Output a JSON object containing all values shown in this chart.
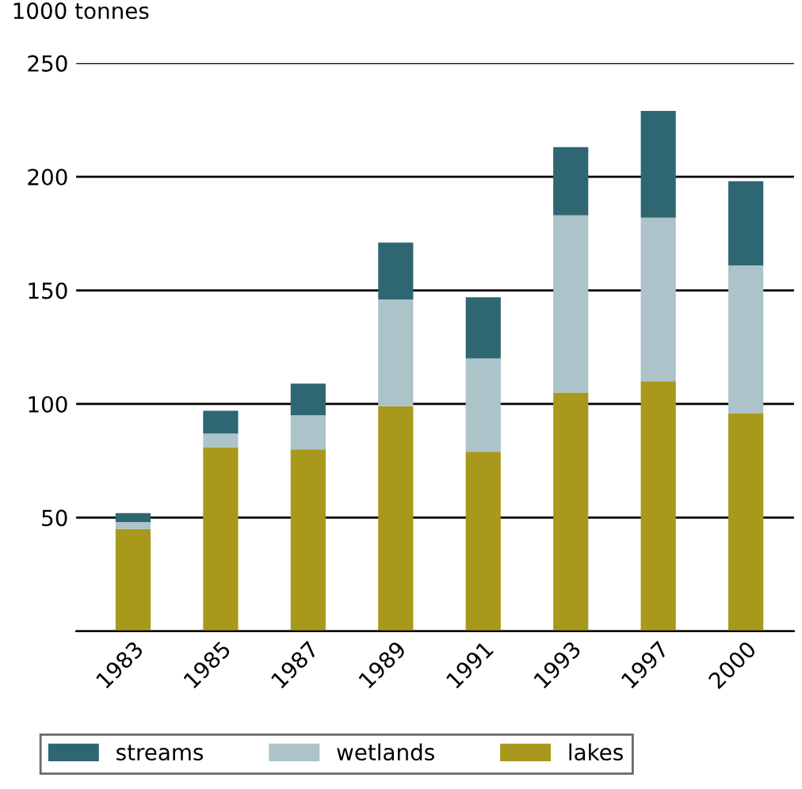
{
  "chart_data": {
    "type": "bar",
    "stacked": true,
    "ylabel": "1000 tonnes",
    "categories": [
      "1983",
      "1985",
      "1987",
      "1989",
      "1991",
      "1993",
      "1997",
      "2000"
    ],
    "series": [
      {
        "name": "lakes",
        "color": "#a8981c",
        "values": [
          45,
          81,
          80,
          99,
          79,
          105,
          110,
          96
        ]
      },
      {
        "name": "wetlands",
        "color": "#abc3c9",
        "values": [
          3,
          6,
          15,
          47,
          41,
          78,
          72,
          65
        ]
      },
      {
        "name": "streams",
        "color": "#2e6672",
        "values": [
          4,
          10,
          14,
          25,
          27,
          30,
          47,
          37
        ]
      }
    ],
    "ylim": [
      0,
      250
    ],
    "yticks": [
      {
        "value": 0,
        "label": null
      },
      50,
      100,
      150,
      200,
      250
    ],
    "grid": "y",
    "legend": "bottom"
  }
}
